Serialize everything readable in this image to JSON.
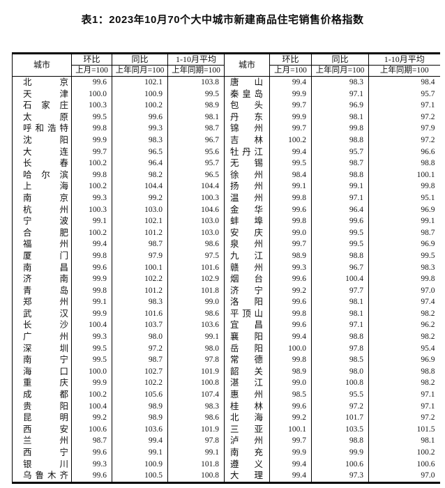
{
  "title": "表1：2023年10月70个大中城市新建商品住宅销售价格指数",
  "table": {
    "col_headers": {
      "city": "城市",
      "mom": "环比",
      "yoy": "同比",
      "avg": "1-10月平均",
      "mom_sub": "上月=100",
      "yoy_sub": "上年同月=100",
      "avg_sub": "上年同期=100"
    },
    "rows": [
      {
        "l": [
          "北京",
          "99.6",
          "102.1",
          "103.8"
        ],
        "r": [
          "唐山",
          "99.4",
          "98.3",
          "98.4"
        ]
      },
      {
        "l": [
          "天津",
          "100.0",
          "100.9",
          "99.5"
        ],
        "r": [
          "秦皇岛",
          "99.9",
          "97.1",
          "95.7"
        ]
      },
      {
        "l": [
          "石家庄",
          "100.3",
          "100.2",
          "98.9"
        ],
        "r": [
          "包头",
          "99.7",
          "96.9",
          "97.1"
        ]
      },
      {
        "l": [
          "太原",
          "99.5",
          "99.6",
          "98.1"
        ],
        "r": [
          "丹东",
          "99.9",
          "98.1",
          "97.2"
        ]
      },
      {
        "l": [
          "呼和浩特",
          "99.8",
          "99.3",
          "98.7"
        ],
        "r": [
          "锦州",
          "99.7",
          "99.8",
          "97.9"
        ]
      },
      {
        "l": [
          "沈阳",
          "99.9",
          "98.3",
          "96.7"
        ],
        "r": [
          "吉林",
          "100.2",
          "98.8",
          "97.2"
        ]
      },
      {
        "l": [
          "大连",
          "99.7",
          "96.5",
          "95.6"
        ],
        "r": [
          "牡丹江",
          "99.4",
          "95.7",
          "96.6"
        ]
      },
      {
        "l": [
          "长春",
          "100.2",
          "96.4",
          "95.7"
        ],
        "r": [
          "无锡",
          "99.5",
          "98.7",
          "98.8"
        ]
      },
      {
        "l": [
          "哈尔滨",
          "99.8",
          "98.2",
          "96.5"
        ],
        "r": [
          "徐州",
          "98.4",
          "98.8",
          "100.1"
        ]
      },
      {
        "l": [
          "上海",
          "100.2",
          "104.4",
          "104.4"
        ],
        "r": [
          "扬州",
          "99.1",
          "99.1",
          "99.8"
        ]
      },
      {
        "l": [
          "南京",
          "99.3",
          "99.2",
          "100.3"
        ],
        "r": [
          "温州",
          "99.8",
          "97.1",
          "95.1"
        ]
      },
      {
        "l": [
          "杭州",
          "100.3",
          "103.0",
          "104.6"
        ],
        "r": [
          "金华",
          "99.6",
          "96.4",
          "96.9"
        ]
      },
      {
        "l": [
          "宁波",
          "99.1",
          "102.1",
          "103.0"
        ],
        "r": [
          "蚌埠",
          "99.8",
          "99.6",
          "99.1"
        ]
      },
      {
        "l": [
          "合肥",
          "100.2",
          "101.2",
          "103.0"
        ],
        "r": [
          "安庆",
          "99.0",
          "99.5",
          "98.7"
        ]
      },
      {
        "l": [
          "福州",
          "99.4",
          "98.7",
          "98.6"
        ],
        "r": [
          "泉州",
          "99.7",
          "99.5",
          "96.9"
        ]
      },
      {
        "l": [
          "厦门",
          "99.8",
          "97.9",
          "97.5"
        ],
        "r": [
          "九江",
          "98.9",
          "98.8",
          "99.5"
        ]
      },
      {
        "l": [
          "南昌",
          "99.6",
          "100.1",
          "101.6"
        ],
        "r": [
          "赣州",
          "99.3",
          "96.7",
          "98.3"
        ]
      },
      {
        "l": [
          "济南",
          "99.9",
          "102.2",
          "102.9"
        ],
        "r": [
          "烟台",
          "99.6",
          "100.4",
          "99.8"
        ]
      },
      {
        "l": [
          "青岛",
          "99.8",
          "101.2",
          "101.8"
        ],
        "r": [
          "济宁",
          "99.2",
          "97.7",
          "97.0"
        ]
      },
      {
        "l": [
          "郑州",
          "99.1",
          "98.3",
          "99.0"
        ],
        "r": [
          "洛阳",
          "99.6",
          "98.1",
          "97.4"
        ]
      },
      {
        "l": [
          "武汉",
          "99.9",
          "101.6",
          "98.6"
        ],
        "r": [
          "平顶山",
          "99.8",
          "98.1",
          "98.2"
        ]
      },
      {
        "l": [
          "长沙",
          "100.4",
          "103.7",
          "103.6"
        ],
        "r": [
          "宜昌",
          "99.6",
          "97.1",
          "96.2"
        ]
      },
      {
        "l": [
          "广州",
          "99.3",
          "98.0",
          "99.1"
        ],
        "r": [
          "襄阳",
          "99.4",
          "98.8",
          "98.2"
        ]
      },
      {
        "l": [
          "深圳",
          "99.5",
          "97.2",
          "98.0"
        ],
        "r": [
          "岳阳",
          "100.0",
          "97.8",
          "95.4"
        ]
      },
      {
        "l": [
          "南宁",
          "99.5",
          "98.7",
          "97.8"
        ],
        "r": [
          "常德",
          "99.8",
          "98.5",
          "96.9"
        ]
      },
      {
        "l": [
          "海口",
          "100.0",
          "102.7",
          "101.9"
        ],
        "r": [
          "韶关",
          "98.9",
          "98.0",
          "98.8"
        ]
      },
      {
        "l": [
          "重庆",
          "99.9",
          "102.2",
          "100.8"
        ],
        "r": [
          "湛江",
          "99.0",
          "100.8",
          "98.2"
        ]
      },
      {
        "l": [
          "成都",
          "100.2",
          "105.6",
          "107.4"
        ],
        "r": [
          "惠州",
          "98.5",
          "95.5",
          "97.1"
        ]
      },
      {
        "l": [
          "贵阳",
          "100.4",
          "98.9",
          "98.3"
        ],
        "r": [
          "桂林",
          "99.6",
          "97.2",
          "97.1"
        ]
      },
      {
        "l": [
          "昆明",
          "99.2",
          "98.9",
          "98.6"
        ],
        "r": [
          "北海",
          "99.2",
          "101.7",
          "97.2"
        ]
      },
      {
        "l": [
          "西安",
          "100.6",
          "103.6",
          "101.9"
        ],
        "r": [
          "三亚",
          "100.1",
          "103.5",
          "101.5"
        ]
      },
      {
        "l": [
          "兰州",
          "98.7",
          "99.4",
          "97.8"
        ],
        "r": [
          "泸州",
          "99.7",
          "98.8",
          "98.1"
        ]
      },
      {
        "l": [
          "西宁",
          "99.6",
          "99.1",
          "99.1"
        ],
        "r": [
          "南充",
          "99.9",
          "99.9",
          "100.2"
        ]
      },
      {
        "l": [
          "银川",
          "99.3",
          "100.9",
          "101.8"
        ],
        "r": [
          "遵义",
          "99.4",
          "100.6",
          "100.6"
        ]
      },
      {
        "l": [
          "乌鲁木齐",
          "99.6",
          "100.5",
          "100.8"
        ],
        "r": [
          "大理",
          "99.4",
          "97.3",
          "97.0"
        ]
      }
    ]
  }
}
